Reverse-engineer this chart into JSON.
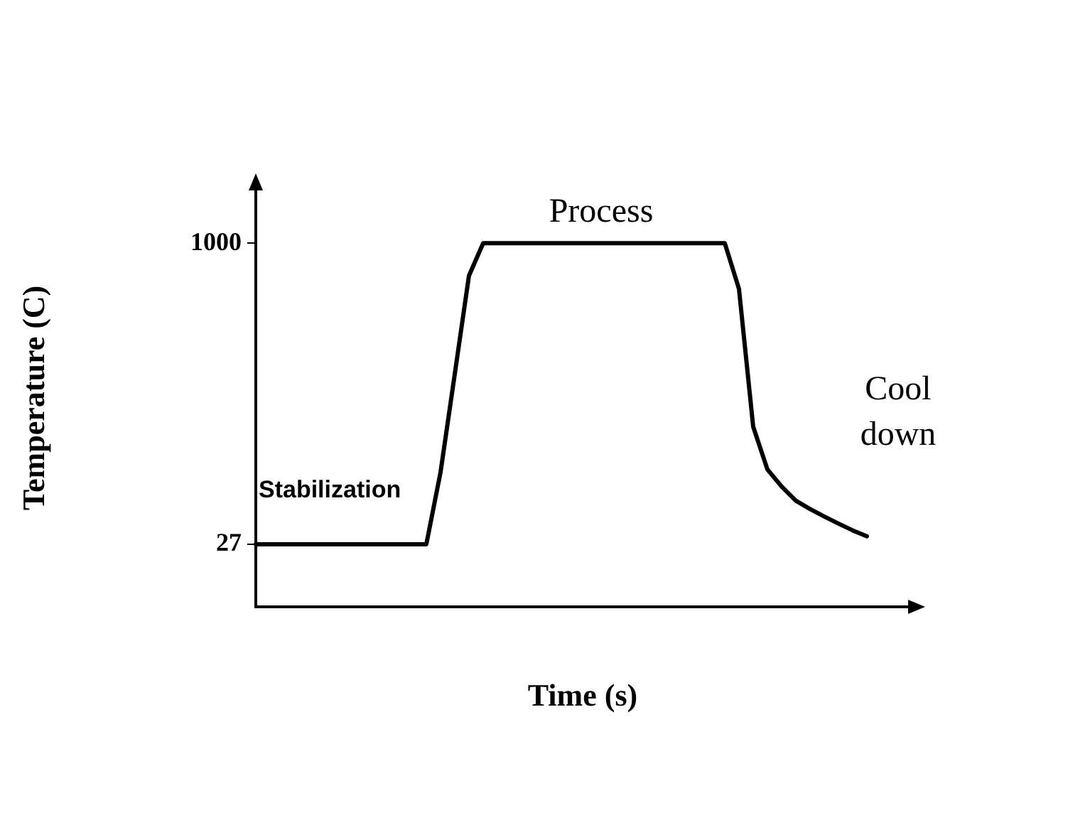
{
  "chart_data": {
    "type": "line",
    "xlabel": "Time (s)",
    "ylabel": "Temperature (C)",
    "categories": [
      null,
      null,
      null,
      null,
      null,
      null,
      null,
      null,
      null,
      null,
      null,
      null,
      null,
      null,
      null,
      null,
      null,
      null,
      null,
      null,
      null,
      null,
      null,
      null,
      null,
      null,
      null,
      null,
      null,
      null,
      null,
      null,
      null,
      null,
      null,
      null,
      null,
      null,
      null,
      null,
      null,
      null,
      null,
      null,
      null,
      null,
      null
    ],
    "series": [
      {
        "color": "#000000",
        "values": [
          27,
          27,
          27,
          27,
          27,
          27,
          27,
          27,
          27,
          27,
          27,
          27,
          27,
          260,
          577,
          895,
          1000,
          1000,
          1000,
          1000,
          1000,
          1000,
          1000,
          1000,
          1000,
          1000,
          1000,
          1000,
          1000,
          1000,
          1000,
          1000,
          1000,
          1000,
          852,
          407,
          269,
          214,
          168,
          141,
          117,
          94,
          72,
          53,
          null,
          null,
          null
        ]
      }
    ],
    "ylim": [
      -175,
      1175
    ],
    "yticks": [
      27,
      1000
    ],
    "tick_labels": "y",
    "grid": false,
    "legend": false,
    "marker": "none",
    "line_style": "solid",
    "annotations": [
      "Process",
      "Stabilization",
      "Cool down"
    ]
  }
}
